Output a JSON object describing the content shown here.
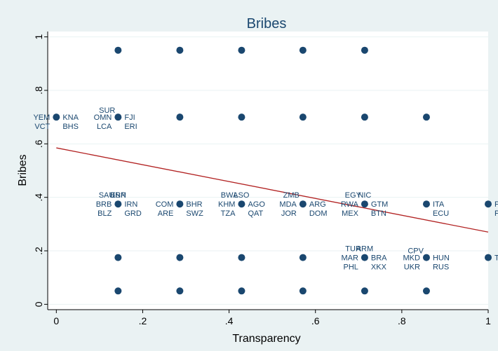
{
  "chart_data": {
    "type": "scatter",
    "title": "Bribes",
    "xlabel": "Transparency",
    "ylabel": "Bribes",
    "xlim": [
      -0.02,
      1.0
    ],
    "ylim": [
      -0.02,
      1.02
    ],
    "xticks": [
      0,
      0.2,
      0.4,
      0.6,
      0.8,
      1
    ],
    "xtick_labels": [
      "0",
      ".2",
      ".4",
      ".6",
      ".8",
      "1"
    ],
    "yticks": [
      0,
      0.2,
      0.4,
      0.6,
      0.8,
      1
    ],
    "ytick_labels": [
      "0",
      ".2",
      ".4",
      ".6",
      ".8",
      "1"
    ],
    "grid": "horizontal",
    "marker_color": "#1a476f",
    "fit_color": "#b22222",
    "background": "#eaf2f3",
    "points": [
      {
        "x": 0.143,
        "y": 0.95
      },
      {
        "x": 0.286,
        "y": 0.95
      },
      {
        "x": 0.429,
        "y": 0.95
      },
      {
        "x": 0.571,
        "y": 0.95
      },
      {
        "x": 0.714,
        "y": 0.95
      },
      {
        "x": 0.0,
        "y": 0.7
      },
      {
        "x": 0.143,
        "y": 0.7
      },
      {
        "x": 0.286,
        "y": 0.7
      },
      {
        "x": 0.429,
        "y": 0.7
      },
      {
        "x": 0.571,
        "y": 0.7
      },
      {
        "x": 0.714,
        "y": 0.7
      },
      {
        "x": 0.857,
        "y": 0.7
      },
      {
        "x": 0.143,
        "y": 0.375
      },
      {
        "x": 0.286,
        "y": 0.375
      },
      {
        "x": 0.429,
        "y": 0.375
      },
      {
        "x": 0.571,
        "y": 0.375
      },
      {
        "x": 0.714,
        "y": 0.375
      },
      {
        "x": 0.857,
        "y": 0.375
      },
      {
        "x": 1.0,
        "y": 0.375
      },
      {
        "x": 0.143,
        "y": 0.175
      },
      {
        "x": 0.286,
        "y": 0.175
      },
      {
        "x": 0.429,
        "y": 0.175
      },
      {
        "x": 0.571,
        "y": 0.175
      },
      {
        "x": 0.714,
        "y": 0.175
      },
      {
        "x": 0.857,
        "y": 0.175
      },
      {
        "x": 1.0,
        "y": 0.175
      },
      {
        "x": 0.143,
        "y": 0.05
      },
      {
        "x": 0.286,
        "y": 0.05
      },
      {
        "x": 0.429,
        "y": 0.05
      },
      {
        "x": 0.571,
        "y": 0.05
      },
      {
        "x": 0.714,
        "y": 0.05
      },
      {
        "x": 0.857,
        "y": 0.05
      }
    ],
    "point_labels": [
      {
        "text": "YEM",
        "x": 0.0,
        "y": 0.7,
        "pos": "left"
      },
      {
        "text": "KNA",
        "x": 0.0,
        "y": 0.7,
        "pos": "right"
      },
      {
        "text": "VCT",
        "x": 0.0,
        "y": 0.7,
        "pos": "below-left"
      },
      {
        "text": "BHS",
        "x": 0.0,
        "y": 0.7,
        "pos": "below-right"
      },
      {
        "text": "SUR",
        "x": 0.143,
        "y": 0.7,
        "pos": "above-left"
      },
      {
        "text": "OMN",
        "x": 0.143,
        "y": 0.7,
        "pos": "left"
      },
      {
        "text": "FJI",
        "x": 0.143,
        "y": 0.7,
        "pos": "right"
      },
      {
        "text": "LCA",
        "x": 0.143,
        "y": 0.7,
        "pos": "below-left"
      },
      {
        "text": "ERI",
        "x": 0.143,
        "y": 0.7,
        "pos": "below-right"
      },
      {
        "text": "SAU",
        "x": 0.143,
        "y": 0.375,
        "pos": "upper-left"
      },
      {
        "text": "ESP",
        "x": 0.143,
        "y": 0.375,
        "pos": "above"
      },
      {
        "text": "BRN",
        "x": 0.143,
        "y": 0.375,
        "pos": "above"
      },
      {
        "text": "BRB",
        "x": 0.143,
        "y": 0.375,
        "pos": "left"
      },
      {
        "text": "IRN",
        "x": 0.143,
        "y": 0.375,
        "pos": "right"
      },
      {
        "text": "BLZ",
        "x": 0.143,
        "y": 0.375,
        "pos": "below-left"
      },
      {
        "text": "GRD",
        "x": 0.143,
        "y": 0.375,
        "pos": "below-right"
      },
      {
        "text": "COM",
        "x": 0.286,
        "y": 0.375,
        "pos": "left"
      },
      {
        "text": "BHR",
        "x": 0.286,
        "y": 0.375,
        "pos": "right"
      },
      {
        "text": "ARE",
        "x": 0.286,
        "y": 0.375,
        "pos": "below-left"
      },
      {
        "text": "SWZ",
        "x": 0.286,
        "y": 0.375,
        "pos": "below-right"
      },
      {
        "text": "BWA",
        "x": 0.429,
        "y": 0.375,
        "pos": "upper-left"
      },
      {
        "text": "LSO",
        "x": 0.429,
        "y": 0.375,
        "pos": "above"
      },
      {
        "text": "KHM",
        "x": 0.429,
        "y": 0.375,
        "pos": "left"
      },
      {
        "text": "AGO",
        "x": 0.429,
        "y": 0.375,
        "pos": "right"
      },
      {
        "text": "TZA",
        "x": 0.429,
        "y": 0.375,
        "pos": "below-left"
      },
      {
        "text": "QAT",
        "x": 0.429,
        "y": 0.375,
        "pos": "below-right"
      },
      {
        "text": "ZMB",
        "x": 0.571,
        "y": 0.375,
        "pos": "upper-left"
      },
      {
        "text": "MDA",
        "x": 0.571,
        "y": 0.375,
        "pos": "left"
      },
      {
        "text": "ARG",
        "x": 0.571,
        "y": 0.375,
        "pos": "right"
      },
      {
        "text": "JOR",
        "x": 0.571,
        "y": 0.375,
        "pos": "below-left"
      },
      {
        "text": "DOM",
        "x": 0.571,
        "y": 0.375,
        "pos": "below-right"
      },
      {
        "text": "EGY",
        "x": 0.714,
        "y": 0.375,
        "pos": "upper-left"
      },
      {
        "text": "NIC",
        "x": 0.714,
        "y": 0.375,
        "pos": "above"
      },
      {
        "text": "RWA",
        "x": 0.714,
        "y": 0.375,
        "pos": "left"
      },
      {
        "text": "GTM",
        "x": 0.714,
        "y": 0.375,
        "pos": "right"
      },
      {
        "text": "MEX",
        "x": 0.714,
        "y": 0.375,
        "pos": "below-left"
      },
      {
        "text": "BTN",
        "x": 0.714,
        "y": 0.375,
        "pos": "below-right"
      },
      {
        "text": "ITA",
        "x": 0.857,
        "y": 0.375,
        "pos": "right"
      },
      {
        "text": "ECU",
        "x": 0.857,
        "y": 0.375,
        "pos": "below-right"
      },
      {
        "text": "PAN",
        "x": 1.0,
        "y": 0.375,
        "pos": "right"
      },
      {
        "text": "PER",
        "x": 1.0,
        "y": 0.375,
        "pos": "below-right"
      },
      {
        "text": "TUR",
        "x": 0.714,
        "y": 0.175,
        "pos": "upper-left"
      },
      {
        "text": "ARM",
        "x": 0.714,
        "y": 0.175,
        "pos": "above"
      },
      {
        "text": "MAR",
        "x": 0.714,
        "y": 0.175,
        "pos": "left"
      },
      {
        "text": "BRA",
        "x": 0.714,
        "y": 0.175,
        "pos": "right"
      },
      {
        "text": "PHL",
        "x": 0.714,
        "y": 0.175,
        "pos": "below-left"
      },
      {
        "text": "XKX",
        "x": 0.714,
        "y": 0.175,
        "pos": "below-right"
      },
      {
        "text": "CPV",
        "x": 0.857,
        "y": 0.175,
        "pos": "above-left"
      },
      {
        "text": "MKD",
        "x": 0.857,
        "y": 0.175,
        "pos": "left"
      },
      {
        "text": "HUN",
        "x": 0.857,
        "y": 0.175,
        "pos": "right"
      },
      {
        "text": "UKR",
        "x": 0.857,
        "y": 0.175,
        "pos": "below-left"
      },
      {
        "text": "RUS",
        "x": 0.857,
        "y": 0.175,
        "pos": "below-right"
      },
      {
        "text": "THA",
        "x": 1.0,
        "y": 0.175,
        "pos": "right"
      }
    ],
    "fit_line": {
      "x": [
        0,
        1
      ],
      "y": [
        0.585,
        0.27
      ]
    }
  }
}
